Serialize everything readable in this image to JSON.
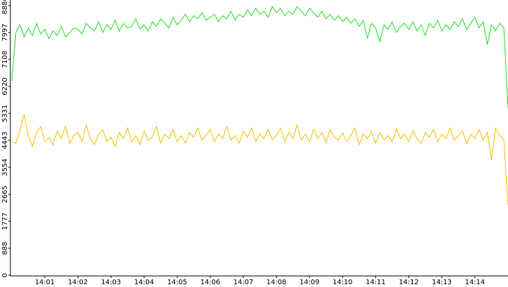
{
  "chart_data": {
    "type": "line",
    "categories": [
      null,
      null,
      null,
      null,
      null,
      null,
      null,
      null,
      "14:01",
      null,
      null,
      null,
      null,
      null,
      null,
      null,
      "14:02",
      null,
      null,
      null,
      null,
      null,
      null,
      null,
      "14:03",
      null,
      null,
      null,
      null,
      null,
      null,
      null,
      "14:04",
      null,
      null,
      null,
      null,
      null,
      null,
      null,
      "14:05",
      null,
      null,
      null,
      null,
      null,
      null,
      null,
      "14:06",
      null,
      null,
      null,
      null,
      null,
      null,
      null,
      "14:07",
      null,
      null,
      null,
      null,
      null,
      null,
      null,
      "14:08",
      null,
      null,
      null,
      null,
      null,
      null,
      null,
      "14:09",
      null,
      null,
      null,
      null,
      null,
      null,
      null,
      "14:10",
      null,
      null,
      null,
      null,
      null,
      null,
      null,
      "14:11",
      null,
      null,
      null,
      null,
      null,
      null,
      null,
      "14:12",
      null,
      null,
      null,
      null,
      null,
      null,
      null,
      "14:13",
      null,
      null,
      null,
      null,
      null,
      null,
      null,
      "14:14",
      null,
      null,
      null,
      null,
      null,
      null,
      null,
      null
    ],
    "series": [
      {
        "color": "#22dd22",
        "values": [
          6400,
          8000,
          8250,
          7850,
          8150,
          7900,
          8300,
          7950,
          8100,
          7800,
          8050,
          7900,
          8200,
          7850,
          8000,
          8150,
          8100,
          7950,
          8300,
          8150,
          8050,
          8350,
          8000,
          8250,
          8100,
          8400,
          8050,
          8300,
          8150,
          8200,
          8450,
          8100,
          8250,
          8050,
          8350,
          8200,
          8450,
          8300,
          8150,
          8500,
          8250,
          8400,
          8600,
          8350,
          8550,
          8450,
          8650,
          8400,
          8500,
          8600,
          8350,
          8550,
          8450,
          8700,
          8400,
          8600,
          8500,
          8750,
          8550,
          8800,
          8600,
          8700,
          8500,
          8850,
          8650,
          8800,
          8550,
          8700,
          8600,
          8850,
          8700,
          8550,
          8800,
          8650,
          8500,
          8700,
          8450,
          8600,
          8400,
          8550,
          8350,
          8500,
          8300,
          8450,
          8200,
          8400,
          7800,
          8300,
          8150,
          7700,
          8250,
          8100,
          8350,
          8000,
          8200,
          8300,
          8100,
          8350,
          8050,
          8250,
          7900,
          8300,
          8150,
          8400,
          8050,
          8250,
          8100,
          8350,
          8200,
          8450,
          8100,
          8300,
          8500,
          8150,
          8350,
          7600,
          8250,
          8050,
          8300,
          8150,
          5500
        ]
      },
      {
        "color": "#f0c000",
        "values": [
          4400,
          4350,
          4800,
          5300,
          4600,
          4250,
          4700,
          4900,
          4400,
          4550,
          4300,
          4750,
          4500,
          4900,
          4350,
          4600,
          4700,
          4400,
          4950,
          4500,
          4300,
          4650,
          4800,
          4400,
          4550,
          4250,
          4700,
          4500,
          4850,
          4400,
          4600,
          4300,
          4750,
          4450,
          4550,
          4900,
          4350,
          4650,
          4500,
          4800,
          4400,
          4600,
          4350,
          4700,
          4550,
          4850,
          4450,
          4600,
          4800,
          4400,
          4650,
          4500,
          4900,
          4450,
          4600,
          4350,
          4750,
          4550,
          4850,
          4400,
          4650,
          4500,
          4800,
          4450,
          4600,
          4850,
          4400,
          4700,
          4500,
          4950,
          4450,
          4650,
          4400,
          4800,
          4500,
          4700,
          4350,
          4800,
          4550,
          4450,
          4700,
          4400,
          4600,
          4850,
          4300,
          4650,
          4500,
          4750,
          4350,
          4700,
          4450,
          4600,
          4400,
          4800,
          4500,
          4650,
          4400,
          4750,
          4500,
          4350,
          4700,
          4550,
          4800,
          4400,
          4650,
          4500,
          4850,
          4450,
          4600,
          4750,
          4350,
          4650,
          4500,
          4800,
          4450,
          4700,
          3800,
          4850,
          4600,
          4450,
          2300
        ]
      }
    ],
    "ylim": [
      0,
      8886
    ],
    "yticks": [
      0,
      888,
      1777,
      2665,
      3554,
      4443,
      5331,
      6220,
      7108,
      7997,
      8886
    ],
    "grid": false
  }
}
